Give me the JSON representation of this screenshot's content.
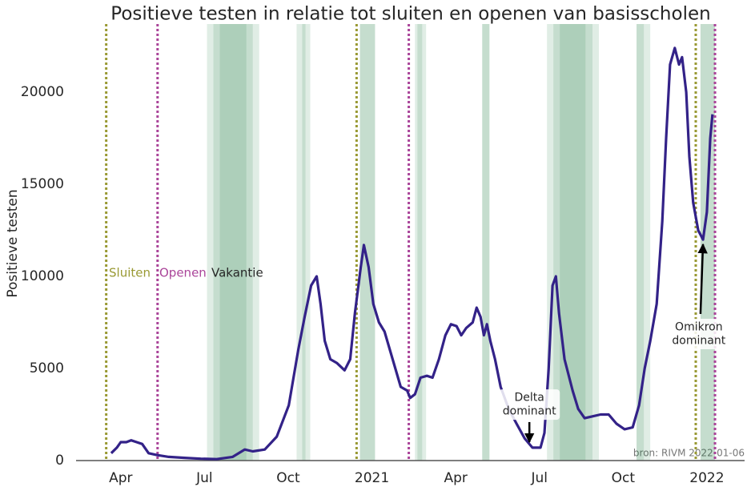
{
  "chart_data": {
    "type": "line",
    "title": "Positieve testen in relatie tot sluiten en openen van basisscholen",
    "y_label": "Positieve testen",
    "color": "#332288",
    "x": [
      2.66,
      2.86,
      3.0,
      3.2,
      3.37,
      3.57,
      3.77,
      4.0,
      4.29,
      4.72,
      5.29,
      5.87,
      6.44,
      7.01,
      7.44,
      7.73,
      8.16,
      8.59,
      9.02,
      9.36,
      9.59,
      9.82,
      10.02,
      10.16,
      10.31,
      10.51,
      10.74,
      11.02,
      11.22,
      11.39,
      11.6,
      11.71,
      11.88,
      12.05,
      12.25,
      12.45,
      12.74,
      13.03,
      13.26,
      13.37,
      13.54,
      13.74,
      13.97,
      14.17,
      14.4,
      14.63,
      14.83,
      15.03,
      15.2,
      15.38,
      15.61,
      15.75,
      15.89,
      16.01,
      16.12,
      16.24,
      16.41,
      16.61,
      16.9,
      17.18,
      17.47,
      17.75,
      18.04,
      18.18,
      18.33,
      18.47,
      18.59,
      18.7,
      18.9,
      19.19,
      19.39,
      19.62,
      19.9,
      20.19,
      20.48,
      20.76,
      21.05,
      21.34,
      21.57,
      21.77,
      21.97,
      22.2,
      22.4,
      22.54,
      22.68,
      22.85,
      23.0,
      23.11,
      23.26,
      23.37,
      23.51,
      23.69,
      23.86,
      24.0,
      24.12,
      24.2
    ],
    "values": [
      400,
      700,
      1000,
      1000,
      1100,
      1000,
      900,
      400,
      300,
      200,
      150,
      100,
      80,
      200,
      600,
      500,
      600,
      1300,
      3000,
      6000,
      7800,
      9500,
      10000,
      8500,
      6500,
      5500,
      5300,
      4900,
      5500,
      8000,
      10500,
      11700,
      10500,
      8500,
      7500,
      7000,
      5500,
      4000,
      3800,
      3400,
      3600,
      4500,
      4600,
      4500,
      5500,
      6800,
      7400,
      7300,
      6800,
      7200,
      7500,
      8300,
      7800,
      6800,
      7400,
      6500,
      5500,
      4000,
      2800,
      2000,
      1200,
      700,
      700,
      1500,
      5000,
      9500,
      10000,
      8000,
      5500,
      3800,
      2800,
      2300,
      2400,
      2500,
      2500,
      2000,
      1700,
      1800,
      3000,
      5000,
      6500,
      8500,
      13000,
      17500,
      21500,
      22400,
      21500,
      21900,
      20000,
      16500,
      14000,
      12500,
      12000,
      13500,
      17500,
      18800
    ],
    "xlim": [
      1.4,
      25.35
    ],
    "xticks": [
      {
        "value": 3,
        "label": "Apr"
      },
      {
        "value": 6,
        "label": "Jul"
      },
      {
        "value": 9,
        "label": "Oct"
      },
      {
        "value": 12,
        "label": "2021"
      },
      {
        "value": 15,
        "label": "Apr"
      },
      {
        "value": 18,
        "label": "Jul"
      },
      {
        "value": 21,
        "label": "Oct"
      },
      {
        "value": 24,
        "label": "2022"
      }
    ],
    "ylim": [
      0,
      23700
    ],
    "yticks": [
      0,
      5000,
      10000,
      15000,
      20000
    ],
    "events": [
      {
        "name": "Sluiten",
        "color": "#999933",
        "x": [
          2.48,
          11.45,
          23.6
        ]
      },
      {
        "name": "Openen",
        "color": "#AA4499",
        "x": [
          4.32,
          13.32,
          24.29
        ]
      }
    ],
    "vacation": {
      "name": "Vakantie",
      "color": "#117733",
      "periods": [
        [
          6.09,
          7.5
        ],
        [
          6.32,
          7.73
        ],
        [
          6.55,
          7.96
        ],
        [
          9.3,
          9.62
        ],
        [
          9.5,
          9.79
        ],
        [
          11.57,
          12.11
        ],
        [
          11.57,
          12.11
        ],
        [
          13.54,
          13.8
        ],
        [
          13.63,
          13.94
        ],
        [
          15.95,
          16.21
        ],
        [
          15.95,
          16.21
        ],
        [
          18.27,
          19.65
        ],
        [
          18.5,
          19.9
        ],
        [
          18.73,
          20.13
        ],
        [
          21.48,
          21.74
        ],
        [
          21.48,
          21.97
        ],
        [
          23.77,
          24.29
        ],
        [
          23.77,
          24.29
        ]
      ]
    },
    "annotations": [
      {
        "lines": [
          "Delta",
          "dominant"
        ],
        "x": 17.64,
        "y": 1000,
        "tail_x": 17.64,
        "tail_y": 2090,
        "text_x": 17.64,
        "text_y": 3040
      },
      {
        "lines": [
          "Omikron",
          "dominant"
        ],
        "x": 23.86,
        "y": 11740,
        "tail_x": 23.77,
        "tail_y": 7960,
        "text_x": 23.71,
        "text_y": 6870
      }
    ],
    "source": "bron: RIVM 2022-01-06"
  }
}
